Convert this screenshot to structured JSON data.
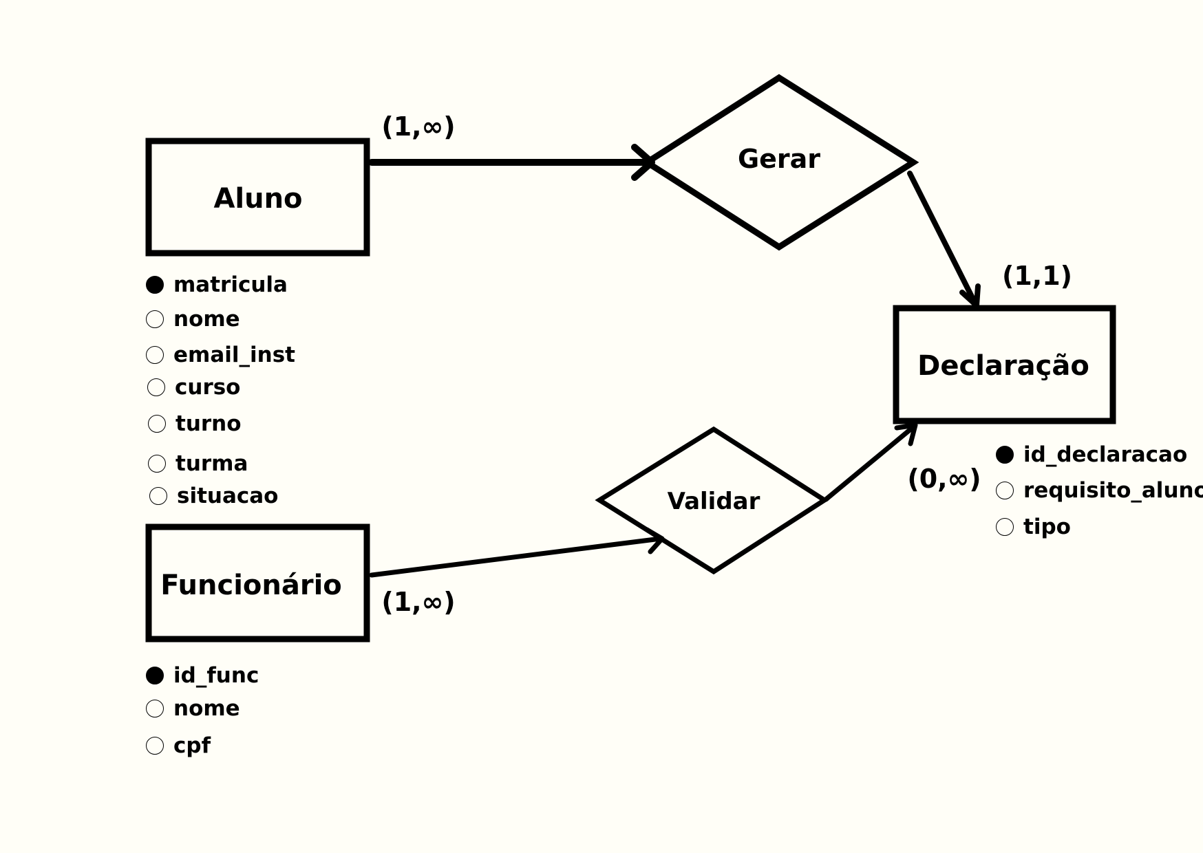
{
  "entities": {
    "aluno": {
      "name": "Aluno"
    },
    "funcionario": {
      "name": "Funcionário"
    },
    "declaracao": {
      "name": "Declaração"
    }
  },
  "relationships": {
    "gerar": {
      "name": "Gerar"
    },
    "validar": {
      "name": "Validar"
    }
  },
  "cardinalities": {
    "aluno_gerar": "(1,∞)",
    "gerar_declaracao": "(1,1)",
    "validar_declaracao": "(0,∞)",
    "funcionario_validar": "(1,∞)"
  },
  "attributes": {
    "aluno": [
      {
        "name": "matricula",
        "key": true
      },
      {
        "name": "nome",
        "key": false
      },
      {
        "name": "email_inst",
        "key": false
      },
      {
        "name": "curso",
        "key": false
      },
      {
        "name": "turno",
        "key": false
      },
      {
        "name": "turma",
        "key": false
      },
      {
        "name": "situacao",
        "key": false
      }
    ],
    "funcionario": [
      {
        "name": "id_func",
        "key": true
      },
      {
        "name": "nome",
        "key": false
      },
      {
        "name": "cpf",
        "key": false
      }
    ],
    "declaracao": [
      {
        "name": "id_declaracao",
        "key": true
      },
      {
        "name": "requisito_aluno",
        "key": false
      },
      {
        "name": "tipo",
        "key": false
      }
    ]
  }
}
